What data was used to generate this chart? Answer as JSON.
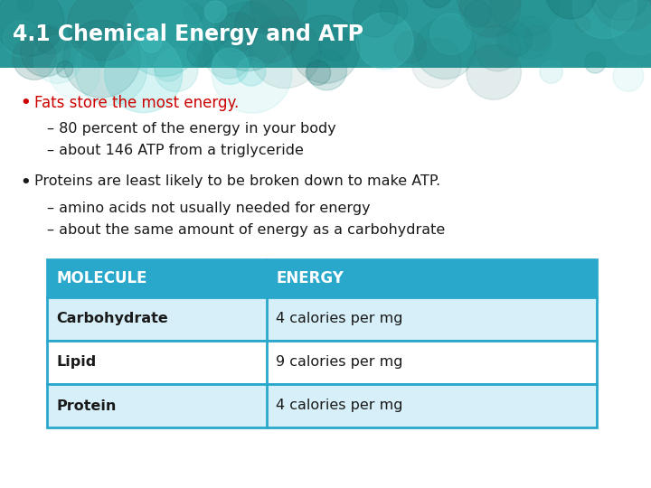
{
  "title": "4.1 Chemical Energy and ATP",
  "title_color": "#FFFFFF",
  "bg_color": "#FFFFFF",
  "bullet1_text": "Fats store the most energy.",
  "bullet1_color": "#CC0000",
  "sub1a": "– 80 percent of the energy in your body",
  "sub1b": "– about 146 ATP from a triglyceride",
  "bullet2_text": "Proteins are least likely to be broken down to make ATP.",
  "bullet2_color": "#1a1a1a",
  "sub2a": "– amino acids not usually needed for energy",
  "sub2b": "– about the same amount of energy as a carbohydrate",
  "sub_color": "#1a1a1a",
  "table_header_bg": "#29a8cc",
  "table_header_text": "#FFFFFF",
  "table_row1_bg": "#d6eff8",
  "table_row2_bg": "#FFFFFF",
  "table_row3_bg": "#d6eff8",
  "table_border_color": "#29a8cc",
  "table_col1_header": "MOLECULE",
  "table_col2_header": "ENERGY",
  "table_rows": [
    [
      "Carbohydrate",
      "4 calories per mg"
    ],
    [
      "Lipid",
      "9 calories per mg"
    ],
    [
      "Protein",
      "4 calories per mg"
    ]
  ]
}
